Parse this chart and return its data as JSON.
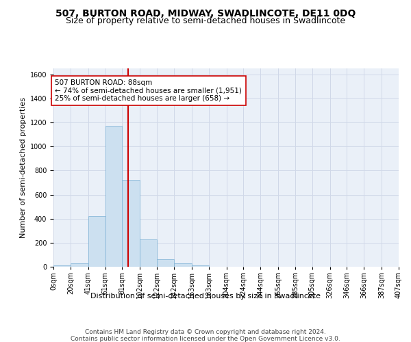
{
  "title": "507, BURTON ROAD, MIDWAY, SWADLINCOTE, DE11 0DQ",
  "subtitle": "Size of property relative to semi-detached houses in Swadlincote",
  "xlabel": "Distribution of semi-detached houses by size in Swadlincote",
  "ylabel": "Number of semi-detached properties",
  "bin_edges": [
    0,
    20,
    41,
    61,
    81,
    102,
    122,
    142,
    163,
    183,
    204,
    224,
    244,
    265,
    285,
    305,
    326,
    346,
    366,
    387,
    407
  ],
  "bar_heights": [
    10,
    30,
    420,
    1170,
    720,
    225,
    60,
    30,
    10,
    0,
    0,
    0,
    0,
    0,
    0,
    0,
    0,
    0,
    0,
    0
  ],
  "bar_color": "#cce0f0",
  "bar_edgecolor": "#7ab0d4",
  "grid_color": "#d0d8e8",
  "background_color": "#eaf0f8",
  "vline_x": 88,
  "vline_color": "#cc0000",
  "annotation_text": "507 BURTON ROAD: 88sqm\n← 74% of semi-detached houses are smaller (1,951)\n25% of semi-detached houses are larger (658) →",
  "annotation_box_color": "#ffffff",
  "annotation_box_edgecolor": "#cc0000",
  "ylim": [
    0,
    1650
  ],
  "yticks": [
    0,
    200,
    400,
    600,
    800,
    1000,
    1200,
    1400,
    1600
  ],
  "tick_labels": [
    "0sqm",
    "20sqm",
    "41sqm",
    "61sqm",
    "81sqm",
    "102sqm",
    "122sqm",
    "142sqm",
    "163sqm",
    "183sqm",
    "204sqm",
    "224sqm",
    "244sqm",
    "265sqm",
    "285sqm",
    "305sqm",
    "326sqm",
    "346sqm",
    "366sqm",
    "387sqm",
    "407sqm"
  ],
  "footer_line1": "Contains HM Land Registry data © Crown copyright and database right 2024.",
  "footer_line2": "Contains public sector information licensed under the Open Government Licence v3.0.",
  "title_fontsize": 10,
  "subtitle_fontsize": 9,
  "axis_label_fontsize": 8,
  "tick_fontsize": 7,
  "annotation_fontsize": 7.5,
  "footer_fontsize": 6.5,
  "ylabel_fontsize": 8
}
